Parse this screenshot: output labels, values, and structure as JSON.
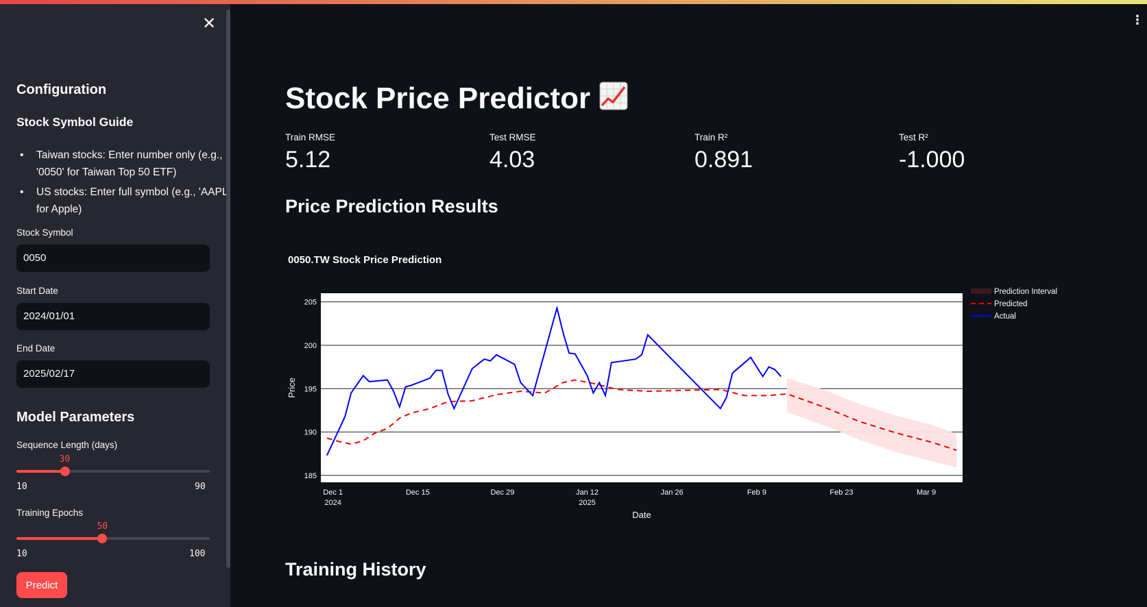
{
  "sidebar": {
    "configuration_heading": "Configuration",
    "guide_heading": "Stock Symbol Guide",
    "guide_items": [
      "Taiwan stocks: Enter number only (e.g., '0050' for Taiwan Top 50 ETF)",
      "US stocks: Enter full symbol (e.g., 'AAPL' for Apple)"
    ],
    "stock_symbol_label": "Stock Symbol",
    "stock_symbol_value": "0050",
    "start_date_label": "Start Date",
    "start_date_value": "2024/01/01",
    "end_date_label": "End Date",
    "end_date_value": "2025/02/17",
    "model_params_heading": "Model Parameters",
    "seq_len": {
      "label": "Sequence Length (days)",
      "value": 30,
      "min": 10,
      "max": 90
    },
    "epochs": {
      "label": "Training Epochs",
      "value": 50,
      "min": 10,
      "max": 100
    },
    "predict_label": "Predict",
    "close_icon": "close-icon"
  },
  "header": {
    "title": "Stock Price Predictor",
    "title_emoji": "chart-increasing-icon",
    "menu_icon": "vertical-dots-icon"
  },
  "metrics": [
    {
      "label": "Train RMSE",
      "value": "5.12"
    },
    {
      "label": "Test RMSE",
      "value": "4.03"
    },
    {
      "label": "Train R²",
      "value": "0.891"
    },
    {
      "label": "Test R²",
      "value": "-1.000"
    }
  ],
  "results_heading": "Price Prediction Results",
  "history_heading": "Training History",
  "colors": {
    "accent": "#ff4b4b",
    "actual": "#0000ff",
    "predicted": "#ff0000",
    "interval": "#fde2e2"
  },
  "chart_data": {
    "type": "line",
    "title": "0050.TW Stock Price Prediction",
    "xlabel": "Date",
    "ylabel": "Price",
    "ylim": [
      184.2,
      206
    ],
    "xlim": [
      "2024-11-29",
      "2025-03-15"
    ],
    "x_ticks": [
      {
        "date": "2024-12-01",
        "label": "Dec 1",
        "sub": "2024"
      },
      {
        "date": "2024-12-15",
        "label": "Dec 15",
        "sub": ""
      },
      {
        "date": "2024-12-29",
        "label": "Dec 29",
        "sub": ""
      },
      {
        "date": "2025-01-12",
        "label": "Jan 12",
        "sub": "2025"
      },
      {
        "date": "2025-01-26",
        "label": "Jan 26",
        "sub": ""
      },
      {
        "date": "2025-02-09",
        "label": "Feb 9",
        "sub": ""
      },
      {
        "date": "2025-02-23",
        "label": "Feb 23",
        "sub": ""
      },
      {
        "date": "2025-03-09",
        "label": "Mar 9",
        "sub": ""
      }
    ],
    "y_ticks": [
      185,
      190,
      195,
      200,
      205
    ],
    "grid": true,
    "legend_position": "right",
    "series": [
      {
        "name": "Prediction Interval",
        "kind": "band",
        "x": [
          "2025-02-14",
          "2025-02-20",
          "2025-02-26",
          "2025-03-04",
          "2025-03-10",
          "2025-03-14"
        ],
        "lower": [
          192.3,
          190.8,
          189.1,
          187.7,
          186.6,
          185.9
        ],
        "upper": [
          196.2,
          194.9,
          193.2,
          191.9,
          190.8,
          189.8
        ]
      },
      {
        "name": "Predicted",
        "kind": "dashed",
        "x": [
          "2024-11-30",
          "2024-12-02",
          "2024-12-04",
          "2024-12-06",
          "2024-12-08",
          "2024-12-10",
          "2024-12-12",
          "2024-12-14",
          "2024-12-17",
          "2024-12-20",
          "2024-12-24",
          "2024-12-28",
          "2025-01-01",
          "2025-01-05",
          "2025-01-08",
          "2025-01-10",
          "2025-01-13",
          "2025-01-17",
          "2025-01-22",
          "2025-01-28",
          "2025-02-03",
          "2025-02-07",
          "2025-02-11",
          "2025-02-14",
          "2025-02-20",
          "2025-02-26",
          "2025-03-04",
          "2025-03-10",
          "2025-03-14"
        ],
        "values": [
          189.3,
          188.9,
          188.6,
          189.0,
          189.9,
          190.4,
          191.6,
          192.2,
          192.7,
          193.5,
          193.6,
          194.3,
          194.7,
          194.5,
          195.7,
          196.0,
          195.6,
          194.9,
          194.7,
          194.8,
          194.9,
          194.2,
          194.2,
          194.4,
          192.9,
          191.2,
          189.9,
          188.8,
          187.9
        ]
      },
      {
        "name": "Actual",
        "kind": "solid",
        "x": [
          "2024-11-30",
          "2024-12-03",
          "2024-12-04",
          "2024-12-06",
          "2024-12-07",
          "2024-12-10",
          "2024-12-11",
          "2024-12-12",
          "2024-12-13",
          "2024-12-14",
          "2024-12-17",
          "2024-12-18",
          "2024-12-19",
          "2024-12-20",
          "2024-12-21",
          "2024-12-24",
          "2024-12-26",
          "2024-12-27",
          "2024-12-28",
          "2024-12-31",
          "2025-01-01",
          "2025-01-03",
          "2025-01-07",
          "2025-01-08",
          "2025-01-09",
          "2025-01-10",
          "2025-01-12",
          "2025-01-13",
          "2025-01-14",
          "2025-01-15",
          "2025-01-16",
          "2025-01-20",
          "2025-01-21",
          "2025-01-22",
          "2025-02-03",
          "2025-02-04",
          "2025-02-05",
          "2025-02-08",
          "2025-02-10",
          "2025-02-11",
          "2025-02-12",
          "2025-02-13"
        ],
        "values": [
          187.3,
          191.8,
          194.5,
          196.5,
          195.8,
          196.0,
          194.7,
          192.9,
          195.2,
          195.4,
          196.2,
          197.1,
          197.1,
          194.4,
          192.7,
          197.3,
          198.4,
          198.2,
          198.9,
          197.8,
          195.7,
          194.2,
          204.3,
          201.5,
          199.1,
          199.0,
          196.5,
          194.5,
          195.7,
          194.2,
          198.0,
          198.4,
          198.9,
          201.2,
          192.7,
          194.0,
          196.8,
          198.6,
          196.4,
          197.5,
          197.2,
          196.4
        ]
      }
    ]
  }
}
